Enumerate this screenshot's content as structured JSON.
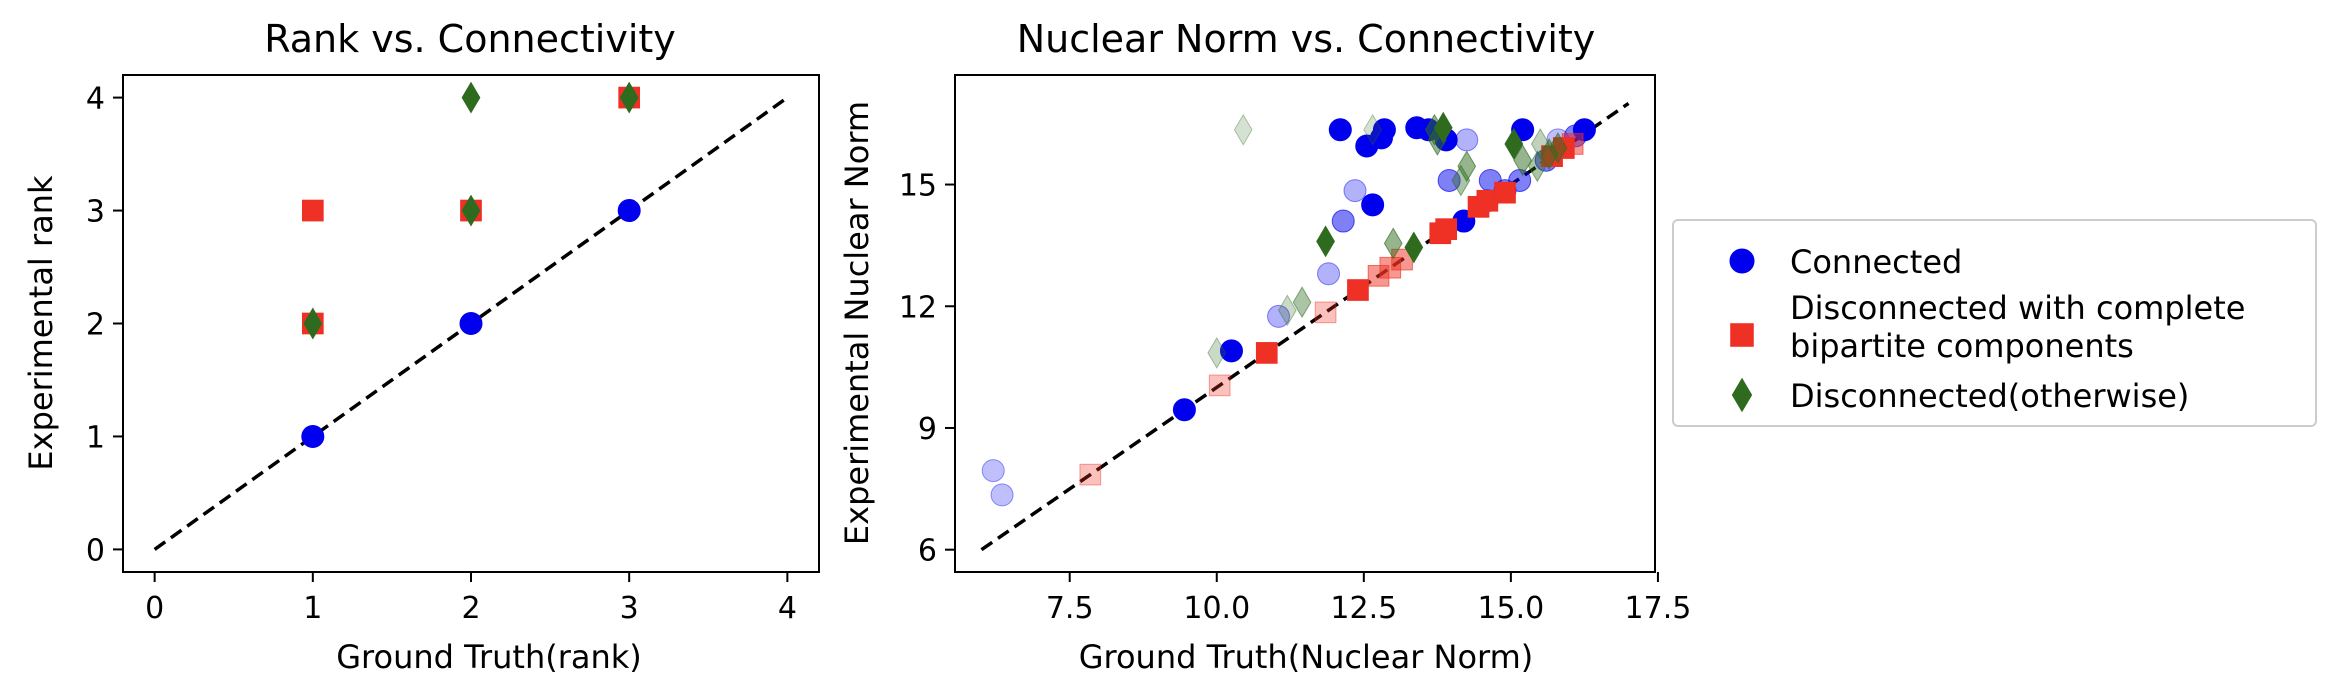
{
  "chart_data": [
    {
      "type": "scatter",
      "title": "Rank vs. Connectivity",
      "xlabel": "Ground Truth(rank)",
      "ylabel": "Experimental rank",
      "xlim": [
        -0.2,
        4.2
      ],
      "ylim": [
        -0.2,
        4.2
      ],
      "xticks": [
        "0",
        "1",
        "2",
        "3",
        "4"
      ],
      "yticks": [
        "0",
        "1",
        "2",
        "3",
        "4"
      ],
      "reference_line": {
        "from": [
          0,
          0
        ],
        "to": [
          4,
          4
        ],
        "style": "dashed",
        "color": "#000000"
      },
      "series": [
        {
          "name": "Connected",
          "marker": "circle",
          "color": "#0000ee",
          "points": [
            [
              1,
              1,
              1
            ],
            [
              2,
              2,
              1
            ],
            [
              3,
              3,
              1
            ]
          ]
        },
        {
          "name": "Disconnected with complete bipartite components",
          "marker": "square",
          "color": "#ee3124",
          "points": [
            [
              1,
              3,
              1
            ],
            [
              1,
              2,
              1
            ],
            [
              2,
              3,
              1
            ],
            [
              3,
              4,
              1
            ]
          ]
        },
        {
          "name": "Disconnected(otherwise)",
          "marker": "diamond",
          "color": "#2e6b1e",
          "points": [
            [
              1,
              2,
              1
            ],
            [
              2,
              4,
              1
            ],
            [
              2,
              3,
              1
            ],
            [
              3,
              4,
              1
            ]
          ]
        }
      ]
    },
    {
      "type": "scatter",
      "title": "Nuclear Norm vs. Connectivity",
      "xlabel": "Ground Truth(Nuclear Norm)",
      "ylabel": "Experimental Nuclear Norm",
      "xlim": [
        5.55,
        17.45
      ],
      "ylim": [
        5.45,
        17.7
      ],
      "xticks": [
        "7.5",
        "10.0",
        "12.5",
        "15.0",
        "17.5"
      ],
      "yticks": [
        "6",
        "9",
        "12",
        "15"
      ],
      "reference_line": {
        "from": [
          6,
          6
        ],
        "to": [
          17,
          17
        ],
        "style": "dashed",
        "color": "#000000"
      },
      "series": [
        {
          "name": "Connected",
          "marker": "circle",
          "color": "#0000ee",
          "points": [
            [
              6.2,
              7.95,
              0.25
            ],
            [
              6.35,
              7.35,
              0.25
            ],
            [
              9.45,
              9.45,
              1
            ],
            [
              10.25,
              10.9,
              1
            ],
            [
              11.05,
              11.75,
              0.3
            ],
            [
              11.9,
              12.8,
              0.3
            ],
            [
              12.15,
              14.1,
              0.5
            ],
            [
              12.35,
              14.85,
              0.3
            ],
            [
              12.1,
              16.35,
              1
            ],
            [
              12.55,
              15.95,
              1
            ],
            [
              12.65,
              14.5,
              1
            ],
            [
              12.85,
              16.35,
              1
            ],
            [
              12.8,
              16.15,
              1
            ],
            [
              13.4,
              16.4,
              1
            ],
            [
              13.6,
              16.35,
              1
            ],
            [
              13.9,
              16.1,
              1
            ],
            [
              13.95,
              15.1,
              0.5
            ],
            [
              14.2,
              14.1,
              1
            ],
            [
              14.25,
              16.1,
              0.3
            ],
            [
              14.6,
              14.6,
              0.5
            ],
            [
              14.65,
              15.1,
              0.5
            ],
            [
              14.9,
              14.85,
              0.5
            ],
            [
              15.15,
              15.1,
              0.5
            ],
            [
              15.2,
              16.35,
              1
            ],
            [
              15.6,
              15.6,
              0.5
            ],
            [
              15.8,
              16.1,
              0.25
            ],
            [
              16.1,
              16.2,
              0.5
            ],
            [
              16.25,
              16.35,
              1
            ]
          ]
        },
        {
          "name": "Disconnected with complete bipartite components",
          "marker": "square",
          "color": "#ee3124",
          "points": [
            [
              7.85,
              7.85,
              0.3
            ],
            [
              10.05,
              10.05,
              0.3
            ],
            [
              10.85,
              10.85,
              1
            ],
            [
              11.85,
              11.85,
              0.3
            ],
            [
              12.4,
              12.4,
              1
            ],
            [
              12.75,
              12.75,
              0.5
            ],
            [
              12.95,
              12.95,
              0.5
            ],
            [
              13.15,
              13.15,
              0.5
            ],
            [
              13.8,
              13.8,
              1
            ],
            [
              13.9,
              13.9,
              1
            ],
            [
              14.45,
              14.45,
              1
            ],
            [
              14.6,
              14.6,
              1
            ],
            [
              14.9,
              14.8,
              1
            ],
            [
              15.7,
              15.7,
              1
            ],
            [
              15.9,
              15.9,
              1
            ],
            [
              16.05,
              16.0,
              0.5
            ]
          ]
        },
        {
          "name": "Disconnected(otherwise)",
          "marker": "diamond",
          "color": "#2e6b1e",
          "points": [
            [
              10.0,
              10.85,
              0.25
            ],
            [
              11.2,
              11.9,
              0.25
            ],
            [
              11.45,
              12.1,
              0.4
            ],
            [
              11.85,
              13.6,
              1
            ],
            [
              10.45,
              16.35,
              0.2
            ],
            [
              12.65,
              16.35,
              0.2
            ],
            [
              13.0,
              13.55,
              0.5
            ],
            [
              13.35,
              13.45,
              1
            ],
            [
              13.7,
              16.35,
              0.5
            ],
            [
              13.75,
              16.1,
              0.5
            ],
            [
              13.85,
              16.4,
              1
            ],
            [
              14.25,
              15.45,
              0.5
            ],
            [
              14.15,
              15.1,
              0.4
            ],
            [
              15.05,
              16.0,
              1
            ],
            [
              15.2,
              15.6,
              0.5
            ],
            [
              15.5,
              16.0,
              0.3
            ],
            [
              15.65,
              15.75,
              0.5
            ],
            [
              15.8,
              15.9,
              0.5
            ],
            [
              15.45,
              15.45,
              0.4
            ]
          ]
        }
      ]
    }
  ],
  "legend": {
    "location": "right, outside axes",
    "items": [
      {
        "label": "Connected",
        "marker": "circle",
        "color": "#0000ee"
      },
      {
        "label": "Disconnected with complete\nbipartite components",
        "marker": "square",
        "color": "#ee3124"
      },
      {
        "label": "Disconnected(otherwise)",
        "marker": "diamond",
        "color": "#2e6b1e"
      }
    ]
  }
}
